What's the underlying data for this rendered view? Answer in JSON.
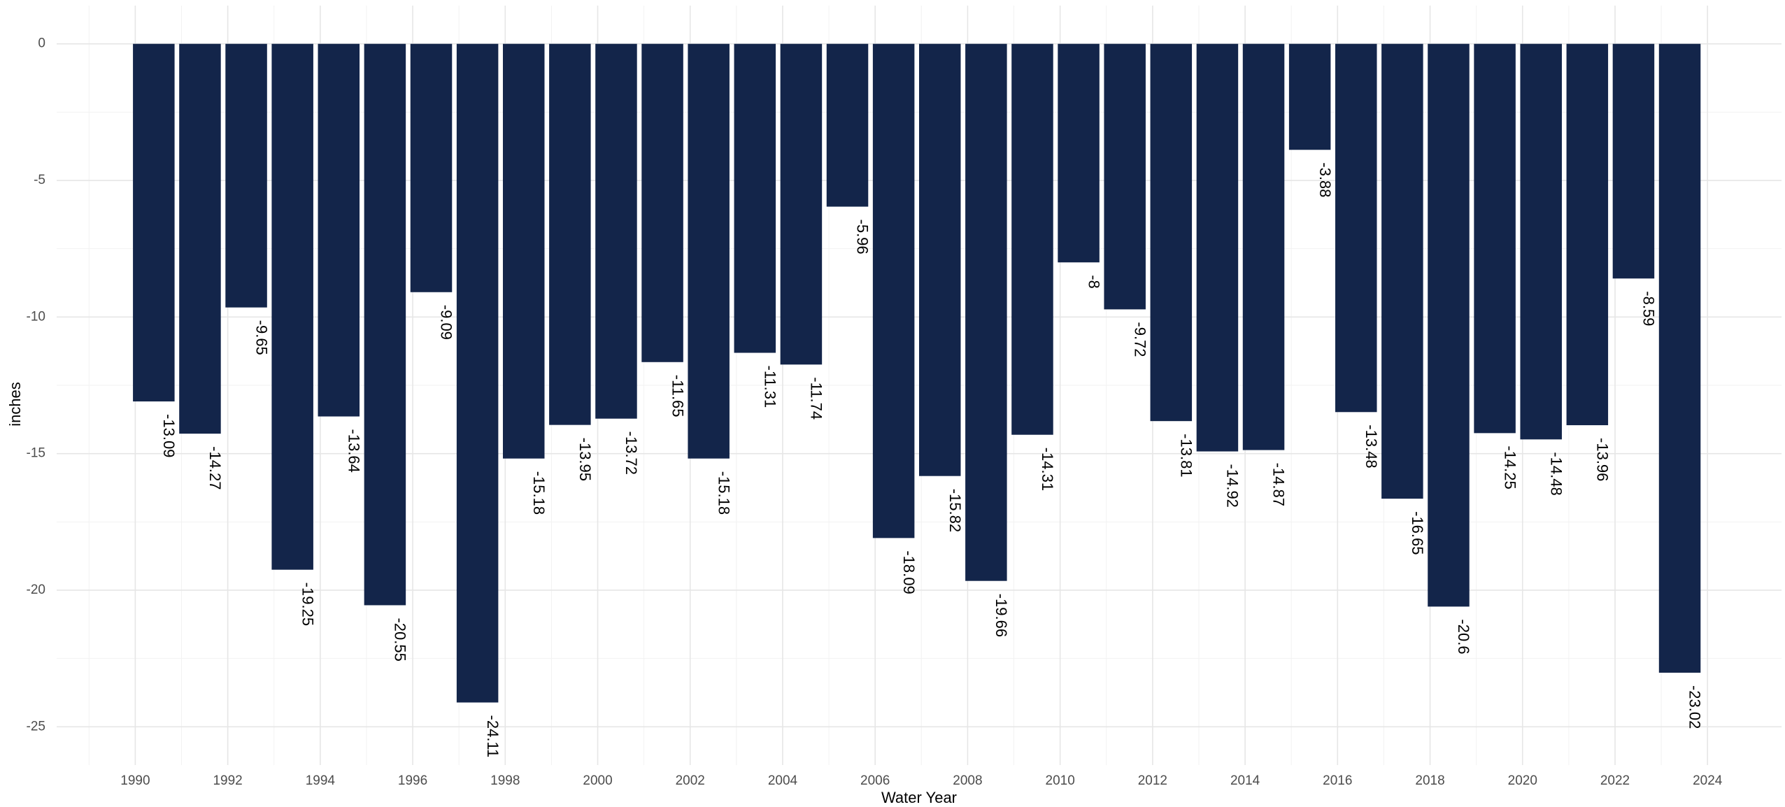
{
  "chart_data": {
    "type": "bar",
    "x_label": "Water Year",
    "y_label": "inches",
    "x": [
      1990,
      1991,
      1992,
      1993,
      1994,
      1995,
      1996,
      1997,
      1998,
      1999,
      2000,
      2001,
      2002,
      2003,
      2004,
      2005,
      2006,
      2007,
      2008,
      2009,
      2010,
      2011,
      2012,
      2013,
      2014,
      2015,
      2016,
      2017,
      2018,
      2019,
      2020,
      2021,
      2022,
      2023
    ],
    "values": [
      -13.09,
      -14.27,
      -9.65,
      -19.25,
      -13.64,
      -20.55,
      -9.09,
      -24.11,
      -15.18,
      -13.95,
      -13.72,
      -11.65,
      -15.18,
      -11.31,
      -11.74,
      -5.96,
      -18.09,
      -15.82,
      -19.66,
      -14.31,
      -8,
      -9.72,
      -13.81,
      -14.92,
      -14.87,
      -3.88,
      -13.48,
      -16.65,
      -20.6,
      -14.25,
      -14.48,
      -13.96,
      -8.59,
      -23.02
    ],
    "color": "#13254a",
    "xlim": [
      1988.3,
      2025.6
    ],
    "xticks": [
      1990,
      1992,
      1994,
      1996,
      1998,
      2000,
      2002,
      2004,
      2006,
      2008,
      2010,
      2012,
      2014,
      2016,
      2018,
      2020,
      2022,
      2024
    ],
    "ylim": [
      -26.4,
      1.4
    ],
    "yticks": [
      0,
      -5,
      -10,
      -15,
      -20,
      -25
    ],
    "grid": true
  }
}
